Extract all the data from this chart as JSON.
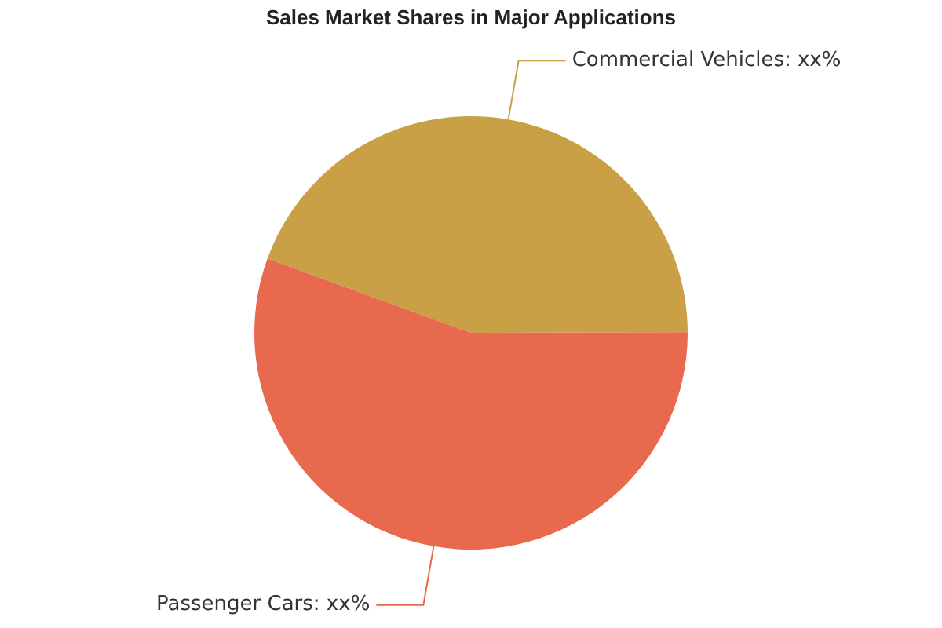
{
  "chart_data": {
    "type": "pie",
    "title": "Sales Market Shares in Major Applications",
    "categories": [
      "Commercial Vehicles",
      "Passenger Cars"
    ],
    "values": [
      44.4,
      55.6
    ],
    "colors": [
      "#c9a046",
      "#e8694e"
    ],
    "value_labels": [
      "xx%",
      "xx%"
    ],
    "legend": false
  }
}
